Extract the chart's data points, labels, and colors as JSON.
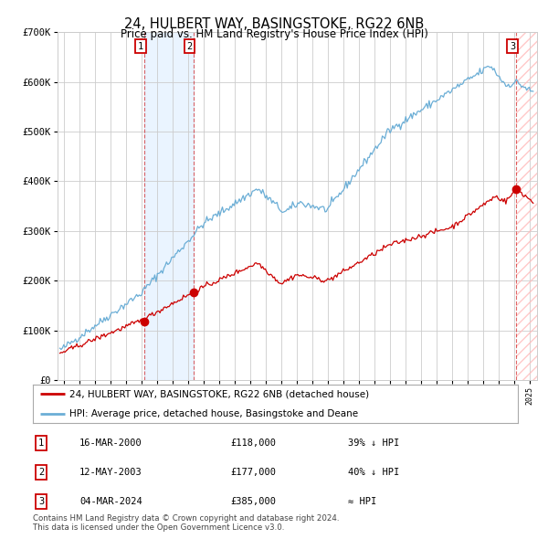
{
  "title": "24, HULBERT WAY, BASINGSTOKE, RG22 6NB",
  "subtitle": "Price paid vs. HM Land Registry's House Price Index (HPI)",
  "ylim": [
    0,
    700000
  ],
  "yticks": [
    0,
    100000,
    200000,
    300000,
    400000,
    500000,
    600000,
    700000
  ],
  "ytick_labels": [
    "£0",
    "£100K",
    "£200K",
    "£300K",
    "£400K",
    "£500K",
    "£600K",
    "£700K"
  ],
  "xlim_start": 1994.6,
  "xlim_end": 2025.5,
  "hpi_color": "#6baed6",
  "price_color": "#cc0000",
  "background_color": "#ffffff",
  "grid_color": "#cccccc",
  "sale_years": [
    2000.21,
    2003.36,
    2024.17
  ],
  "sale_prices": [
    118000,
    177000,
    385000
  ],
  "legend_line1": "24, HULBERT WAY, BASINGSTOKE, RG22 6NB (detached house)",
  "legend_line2": "HPI: Average price, detached house, Basingstoke and Deane",
  "table_rows": [
    [
      "1",
      "16-MAR-2000",
      "£118,000",
      "39% ↓ HPI"
    ],
    [
      "2",
      "12-MAY-2003",
      "£177,000",
      "40% ↓ HPI"
    ],
    [
      "3",
      "04-MAR-2024",
      "£385,000",
      "≈ HPI"
    ]
  ],
  "footnote": "Contains HM Land Registry data © Crown copyright and database right 2024.\nThis data is licensed under the Open Government Licence v3.0."
}
